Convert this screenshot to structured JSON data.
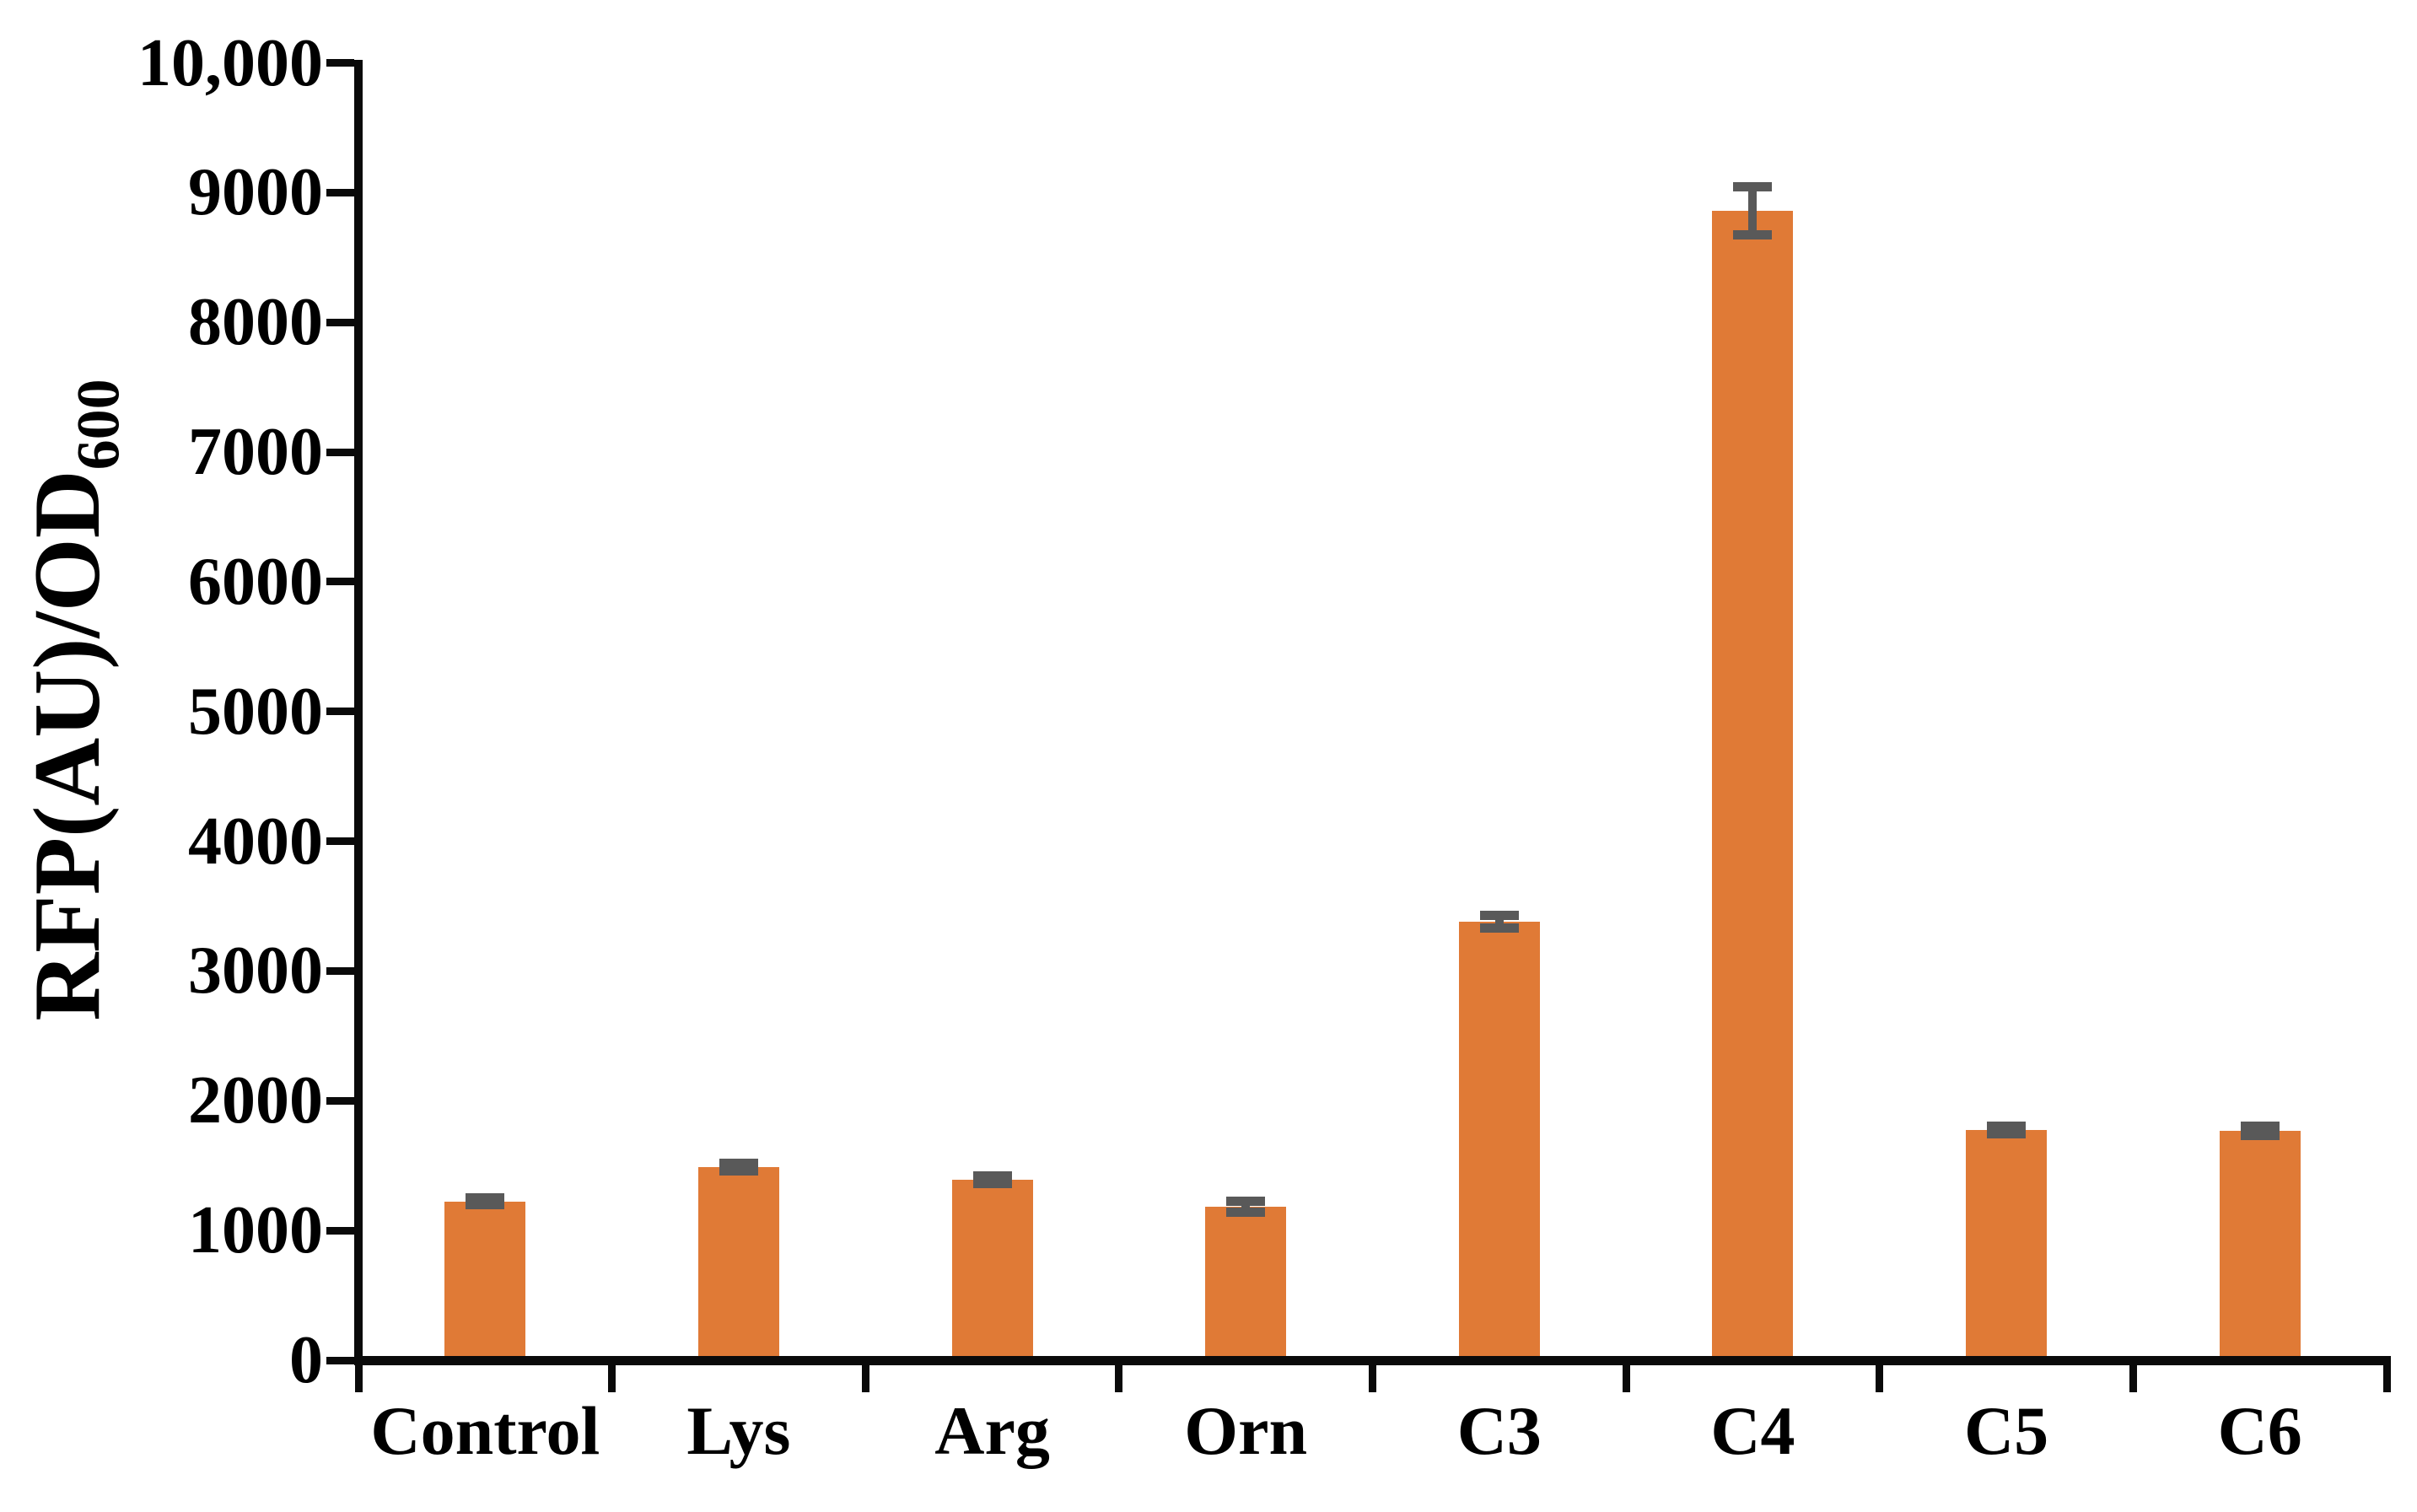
{
  "figure": {
    "background_color": "#ffffff",
    "text_color": "#000000"
  },
  "chart_data": {
    "type": "bar",
    "title": "",
    "xlabel": "",
    "ylabel_main": "RFP(AU)/OD",
    "ylabel_sub": "600",
    "categories": [
      "Control",
      "Lys",
      "Arg",
      "Orn",
      "C3",
      "C4",
      "C5",
      "C6"
    ],
    "values": [
      1225,
      1490,
      1390,
      1180,
      3380,
      8860,
      1775,
      1770
    ],
    "errors": [
      25,
      30,
      28,
      42,
      48,
      185,
      30,
      36
    ],
    "ylim": [
      0,
      10000
    ],
    "ytick_values": [
      0,
      1000,
      2000,
      3000,
      4000,
      5000,
      6000,
      7000,
      8000,
      9000,
      10000
    ],
    "ytick_labels": [
      "0",
      "1000",
      "2000",
      "3000",
      "4000",
      "5000",
      "6000",
      "7000",
      "8000",
      "9000",
      "10,000"
    ],
    "grid": false,
    "legend_position": "none",
    "bar_color": "#E07A36",
    "error_bar_color": "#595959",
    "axis_color": "#0a0a0a"
  }
}
